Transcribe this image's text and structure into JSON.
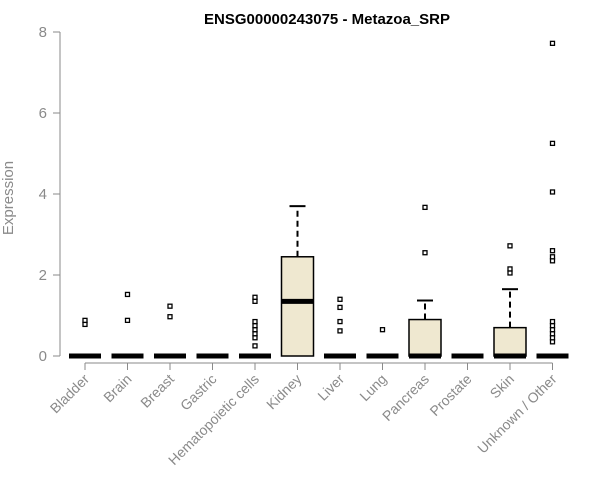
{
  "chart_data": {
    "type": "boxplot",
    "title": "ENSG00000243075 - Metazoa_SRP",
    "xlabel": "",
    "ylabel": "Expression",
    "ylim": [
      0,
      8
    ],
    "yticks": [
      0,
      2,
      4,
      6,
      8
    ],
    "grid": false,
    "legend": "none",
    "box_fill": "#efe8d0",
    "categories": [
      "Bladder",
      "Brain",
      "Breast",
      "Gastric",
      "Hematopoietic cells",
      "Kidney",
      "Liver",
      "Lung",
      "Pancreas",
      "Prostate",
      "Skin",
      "Unknown / Other"
    ],
    "boxes": [
      {
        "q1": 0,
        "median": 0,
        "q3": 0,
        "whisker_low": 0,
        "whisker_high": 0,
        "outliers": [
          0.78,
          0.88
        ]
      },
      {
        "q1": 0,
        "median": 0,
        "q3": 0,
        "whisker_low": 0,
        "whisker_high": 0,
        "outliers": [
          0.88,
          1.52
        ]
      },
      {
        "q1": 0,
        "median": 0,
        "q3": 0,
        "whisker_low": 0,
        "whisker_high": 0,
        "outliers": [
          0.97,
          1.23
        ]
      },
      {
        "q1": 0,
        "median": 0,
        "q3": 0,
        "whisker_low": 0,
        "whisker_high": 0,
        "outliers": []
      },
      {
        "q1": 0,
        "median": 0,
        "q3": 0,
        "whisker_low": 0,
        "whisker_high": 0,
        "outliers": [
          0.25,
          0.45,
          0.55,
          0.65,
          0.75,
          0.85,
          1.35,
          1.45
        ]
      },
      {
        "q1": 0,
        "median": 1.35,
        "q3": 2.45,
        "whisker_low": 0,
        "whisker_high": 3.7,
        "outliers": []
      },
      {
        "q1": 0,
        "median": 0,
        "q3": 0,
        "whisker_low": 0,
        "whisker_high": 0,
        "outliers": [
          0.62,
          0.85,
          1.2,
          1.4
        ]
      },
      {
        "q1": 0,
        "median": 0,
        "q3": 0,
        "whisker_low": 0,
        "whisker_high": 0,
        "outliers": [
          0.65
        ]
      },
      {
        "q1": 0,
        "median": 0,
        "q3": 0.9,
        "whisker_low": 0,
        "whisker_high": 1.37,
        "outliers": [
          2.55,
          3.67
        ]
      },
      {
        "q1": 0,
        "median": 0,
        "q3": 0,
        "whisker_low": 0,
        "whisker_high": 0,
        "outliers": []
      },
      {
        "q1": 0,
        "median": 0,
        "q3": 0.7,
        "whisker_low": 0,
        "whisker_high": 1.65,
        "outliers": [
          2.05,
          2.15,
          2.72
        ]
      },
      {
        "q1": 0,
        "median": 0,
        "q3": 0,
        "whisker_low": 0,
        "whisker_high": 0,
        "outliers": [
          0.35,
          0.45,
          0.55,
          0.65,
          0.75,
          0.85,
          2.35,
          2.45,
          2.6,
          4.05,
          5.25,
          7.72
        ]
      }
    ]
  }
}
